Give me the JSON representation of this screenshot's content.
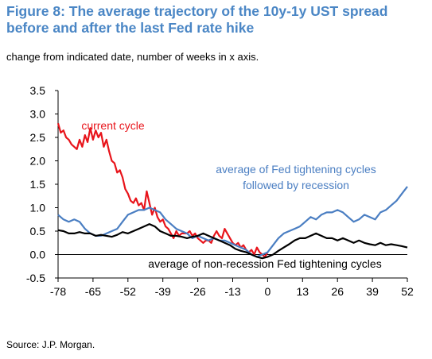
{
  "header": {
    "title": "Figure 8: The average trajectory of the 10y-1y UST spread before and after the last Fed rate hike",
    "subtitle": "change from indicated date, number of weeks in x axis."
  },
  "footer": {
    "source": "Source: J.P. Morgan."
  },
  "chart_data": {
    "type": "line",
    "title": "Figure 8: The average trajectory of the 10y-1y UST spread before and after the last Fed rate hike",
    "subtitle": "change from indicated date, number of weeks in x axis.",
    "xlabel": "",
    "ylabel": "",
    "xlim": [
      -78,
      52
    ],
    "ylim": [
      -0.5,
      3.5
    ],
    "xticks": [
      -78,
      -65,
      -52,
      -39,
      -26,
      -13,
      0,
      13,
      26,
      39,
      52
    ],
    "yticks": [
      -0.5,
      0.0,
      0.5,
      1.0,
      1.5,
      2.0,
      2.5,
      3.0,
      3.5
    ],
    "grid": false,
    "zero_line": true,
    "series": [
      {
        "name": "current cycle",
        "label_lines": [
          "current cycle"
        ],
        "color": "#e8141b",
        "x": [
          -78,
          -77,
          -76,
          -75,
          -74,
          -73,
          -72,
          -71,
          -70,
          -69,
          -68,
          -67,
          -66,
          -65,
          -64,
          -63,
          -62,
          -61,
          -60,
          -59,
          -58,
          -57,
          -56,
          -55,
          -54,
          -53,
          -52,
          -51,
          -50,
          -49,
          -48,
          -47,
          -46,
          -45,
          -44,
          -43,
          -42,
          -41,
          -40,
          -39,
          -38,
          -37,
          -36,
          -35,
          -34,
          -33,
          -32,
          -31,
          -30,
          -29,
          -28,
          -27,
          -26,
          -25,
          -24,
          -23,
          -22,
          -21,
          -20,
          -19,
          -18,
          -17,
          -16,
          -15,
          -14,
          -13,
          -12,
          -11,
          -10,
          -9,
          -8,
          -7,
          -6,
          -5,
          -4,
          -3,
          -2,
          -1,
          0
        ],
        "y": [
          2.8,
          2.6,
          2.65,
          2.5,
          2.45,
          2.35,
          2.3,
          2.25,
          2.45,
          2.3,
          2.55,
          2.4,
          2.7,
          2.45,
          2.65,
          2.5,
          2.6,
          2.3,
          2.45,
          2.2,
          2.0,
          1.95,
          1.75,
          1.8,
          1.65,
          1.4,
          1.3,
          1.15,
          1.1,
          1.2,
          1.05,
          1.1,
          0.95,
          1.35,
          1.1,
          0.85,
          1.0,
          0.8,
          0.7,
          0.75,
          0.6,
          0.55,
          0.45,
          0.35,
          0.5,
          0.4,
          0.45,
          0.45,
          0.45,
          0.5,
          0.4,
          0.45,
          0.35,
          0.3,
          0.25,
          0.3,
          0.3,
          0.25,
          0.4,
          0.5,
          0.4,
          0.35,
          0.55,
          0.45,
          0.35,
          0.25,
          0.2,
          0.25,
          0.15,
          0.2,
          0.1,
          0.05,
          0.1,
          0.0,
          0.15,
          0.05,
          0.0,
          -0.05,
          0.05
        ]
      },
      {
        "name": "average of Fed tightening cycles followed by recession",
        "label_lines": [
          "average of Fed tightening cycles",
          "followed by recession"
        ],
        "color": "#4a7ec2",
        "x": [
          -78,
          -76,
          -74,
          -72,
          -70,
          -68,
          -66,
          -64,
          -62,
          -60,
          -58,
          -56,
          -54,
          -52,
          -50,
          -48,
          -46,
          -44,
          -42,
          -40,
          -38,
          -36,
          -34,
          -32,
          -30,
          -28,
          -26,
          -24,
          -22,
          -20,
          -18,
          -16,
          -14,
          -12,
          -10,
          -8,
          -6,
          -4,
          -2,
          0,
          2,
          4,
          6,
          8,
          10,
          12,
          14,
          16,
          18,
          20,
          22,
          24,
          26,
          28,
          30,
          32,
          34,
          36,
          38,
          40,
          42,
          44,
          46,
          48,
          50,
          52
        ],
        "y": [
          0.85,
          0.75,
          0.7,
          0.75,
          0.7,
          0.55,
          0.45,
          0.4,
          0.4,
          0.45,
          0.5,
          0.55,
          0.7,
          0.85,
          0.9,
          0.95,
          0.95,
          1.0,
          0.95,
          0.9,
          0.75,
          0.65,
          0.55,
          0.5,
          0.45,
          0.35,
          0.4,
          0.35,
          0.3,
          0.35,
          0.3,
          0.3,
          0.25,
          0.2,
          0.15,
          0.1,
          0.0,
          -0.05,
          0.0,
          0.05,
          0.2,
          0.35,
          0.45,
          0.5,
          0.55,
          0.6,
          0.7,
          0.8,
          0.75,
          0.85,
          0.9,
          0.9,
          0.95,
          0.9,
          0.8,
          0.7,
          0.75,
          0.85,
          0.8,
          0.75,
          0.9,
          0.95,
          1.05,
          1.15,
          1.3,
          1.45
        ]
      },
      {
        "name": "average of non-recession Fed tightening cycles",
        "label_lines": [
          "average of non-recession Fed tightening cycles"
        ],
        "color": "#000000",
        "x": [
          -78,
          -76,
          -74,
          -72,
          -70,
          -68,
          -66,
          -64,
          -62,
          -60,
          -58,
          -56,
          -54,
          -52,
          -50,
          -48,
          -46,
          -44,
          -42,
          -40,
          -38,
          -36,
          -34,
          -32,
          -30,
          -28,
          -26,
          -24,
          -22,
          -20,
          -18,
          -16,
          -14,
          -12,
          -10,
          -8,
          -6,
          -4,
          -2,
          0,
          2,
          4,
          6,
          8,
          10,
          12,
          14,
          16,
          18,
          20,
          22,
          24,
          26,
          28,
          30,
          32,
          34,
          36,
          38,
          40,
          42,
          44,
          46,
          48,
          50,
          52
        ],
        "y": [
          0.52,
          0.5,
          0.45,
          0.45,
          0.48,
          0.45,
          0.45,
          0.4,
          0.42,
          0.4,
          0.38,
          0.42,
          0.48,
          0.45,
          0.5,
          0.55,
          0.6,
          0.65,
          0.6,
          0.5,
          0.45,
          0.4,
          0.4,
          0.38,
          0.35,
          0.38,
          0.4,
          0.45,
          0.4,
          0.35,
          0.3,
          0.25,
          0.2,
          0.12,
          0.08,
          0.05,
          0.0,
          -0.05,
          -0.08,
          -0.05,
          0.0,
          0.08,
          0.15,
          0.22,
          0.3,
          0.35,
          0.35,
          0.4,
          0.45,
          0.4,
          0.35,
          0.35,
          0.3,
          0.35,
          0.3,
          0.25,
          0.3,
          0.25,
          0.22,
          0.2,
          0.25,
          0.2,
          0.22,
          0.2,
          0.18,
          0.15
        ]
      }
    ]
  }
}
